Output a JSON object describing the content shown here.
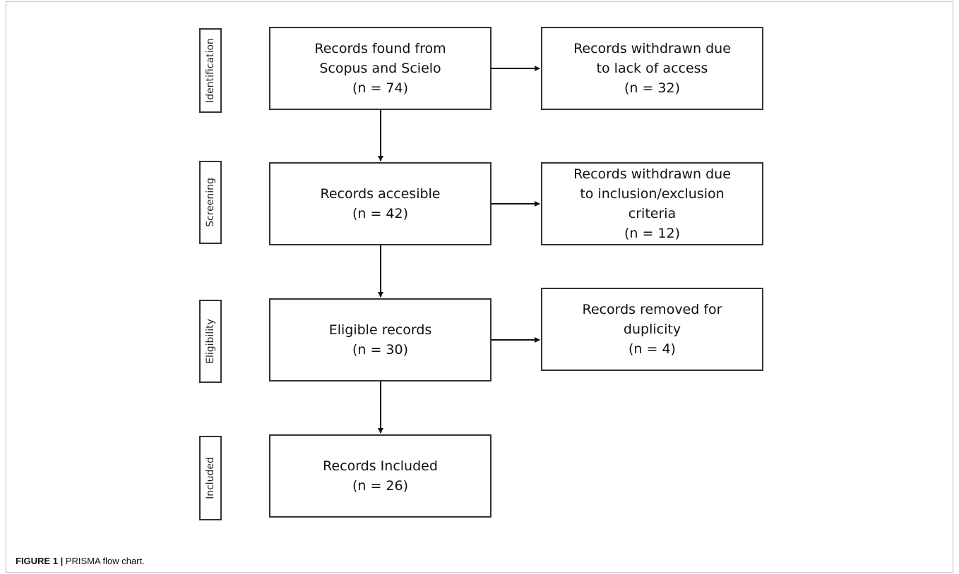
{
  "stages": {
    "identification": "Identification",
    "screening": "Screening",
    "eligibility": "Eligibility",
    "included": "Included"
  },
  "boxes": {
    "found": {
      "line1": "Records found from",
      "line2": "Scopus and Scielo",
      "count": "(n = 74)"
    },
    "withdrawn_access": {
      "line1": "Records withdrawn due",
      "line2": "to lack of access",
      "count": "(n = 32)"
    },
    "accessible": {
      "line1": "Records accesible",
      "count": "(n = 42)"
    },
    "withdrawn_criteria": {
      "line1": "Records withdrawn due",
      "line2": "to inclusion/exclusion",
      "line3": "criteria",
      "count": "(n = 12)"
    },
    "eligible": {
      "line1": "Eligible records",
      "count": "(n = 30)"
    },
    "removed_duplicity": {
      "line1": "Records removed for",
      "line2": "duplicity",
      "count": "(n = 4)"
    },
    "included": {
      "line1": "Records Included",
      "count": "(n = 26)"
    }
  },
  "caption": {
    "label": "FIGURE 1 |",
    "text": " PRISMA flow chart."
  }
}
